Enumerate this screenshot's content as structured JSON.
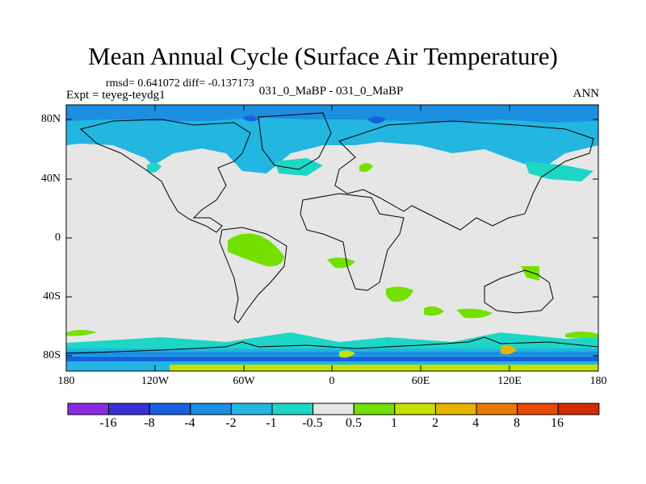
{
  "title": "Mean Annual Cycle (Surface Air Temperature)",
  "stats": "rmsd= 0.641072 diff= -0.137173",
  "expt": "Expt = teyeg-teydg1",
  "cases": "031_0_MaBP - 031_0_MaBP",
  "season": "ANN",
  "lat_labels": [
    "80N",
    "40N",
    "0",
    "40S",
    "80S"
  ],
  "lon_labels": [
    "180",
    "120W",
    "60W",
    "0",
    "60E",
    "120E",
    "180"
  ],
  "colorbar": {
    "labels": [
      "-16",
      "-8",
      "-4",
      "-2",
      "-1",
      "-0.5",
      "0.5",
      "1",
      "2",
      "4",
      "8",
      "16"
    ],
    "colors": [
      "#8a2be2",
      "#3a2fd6",
      "#1a5fe0",
      "#1b8fe0",
      "#22b6e0",
      "#1dd6c6",
      "#e6e6e6",
      "#74e000",
      "#c6e000",
      "#e6b400",
      "#e67a00",
      "#e64a00",
      "#d42a00"
    ]
  },
  "colors": {
    "background": "#e6e6e6",
    "cold_1": "#1dd6c6",
    "cold_2": "#22b6e0",
    "cold_3": "#1b8fe0",
    "cold_4": "#1a5fe0",
    "warm_1": "#74e000",
    "warm_2": "#c6e000",
    "warm_3": "#e6b400"
  }
}
